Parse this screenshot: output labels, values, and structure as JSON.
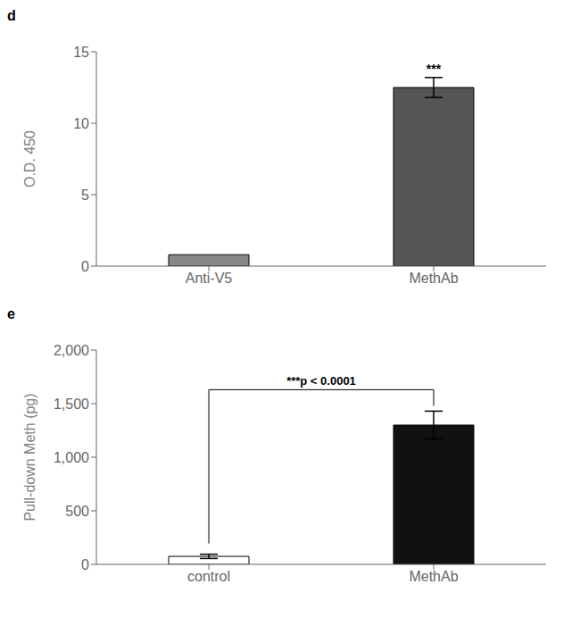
{
  "chart_data": [
    {
      "type": "bar",
      "title": "d",
      "categories": [
        "Anti-V5",
        "MethAb"
      ],
      "values": [
        0.8,
        12.5
      ],
      "errors": [
        null,
        0.7
      ],
      "colors": [
        "#888888",
        "#555555"
      ],
      "ylabel": "O.D. 450",
      "ylim": [
        0,
        15
      ],
      "yticks": [
        0,
        5,
        10,
        15
      ],
      "grid": false,
      "annotations": [
        {
          "text": "***",
          "category": "MethAb"
        }
      ]
    },
    {
      "type": "bar",
      "title": "e",
      "categories": [
        "control",
        "MethAb"
      ],
      "values": [
        75,
        1300
      ],
      "errors": [
        20,
        130
      ],
      "colors": [
        "#ffffff",
        "#111111"
      ],
      "ylabel": "Pull-down Meth (pg)",
      "ylim": [
        0,
        2000
      ],
      "yticks": [
        0,
        500,
        {
          "value": 1000,
          "label": "1,000"
        },
        {
          "value": 1500,
          "label": "1,500"
        },
        {
          "value": 2000,
          "label": "2,000"
        }
      ],
      "grid": false,
      "annotations": [
        {
          "text": "***p < 0.0001",
          "between": [
            "control",
            "MethAb"
          ]
        }
      ]
    }
  ]
}
